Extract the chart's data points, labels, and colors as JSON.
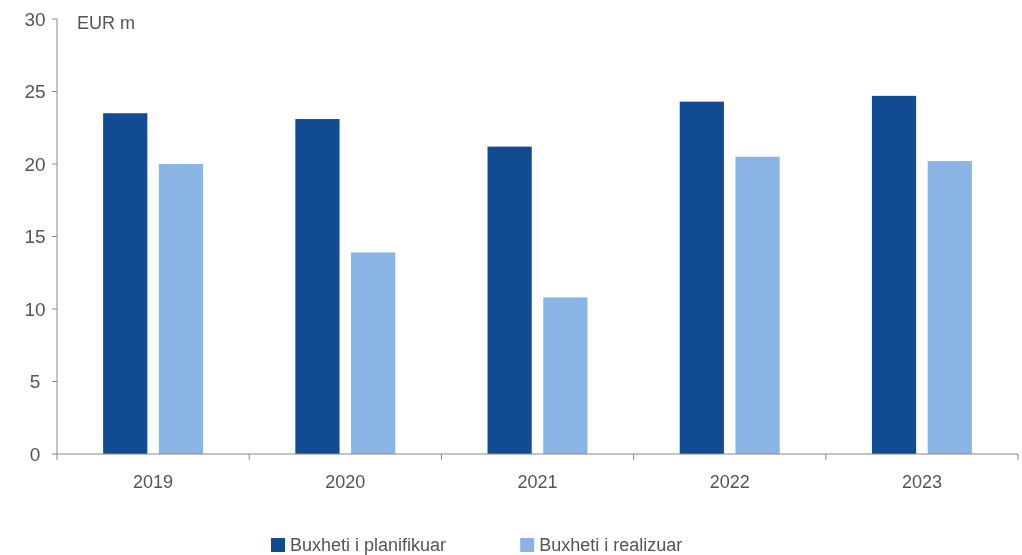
{
  "chart_data": {
    "type": "bar",
    "ylabel": "EUR m",
    "categories": [
      "2019",
      "2020",
      "2021",
      "2022",
      "2023"
    ],
    "series": [
      {
        "name": "Buxheti i planifikuar",
        "color": "#114b91",
        "values": [
          23.5,
          23.1,
          21.2,
          24.3,
          24.7
        ]
      },
      {
        "name": "Buxheti i realizuar",
        "color": "#8ab4e3",
        "values": [
          20.0,
          13.9,
          10.8,
          20.5,
          20.2
        ]
      }
    ],
    "ylim": [
      0,
      30
    ],
    "yticks": [
      0,
      5,
      10,
      15,
      20,
      25,
      30
    ],
    "grid": false,
    "legend": "bottom"
  }
}
